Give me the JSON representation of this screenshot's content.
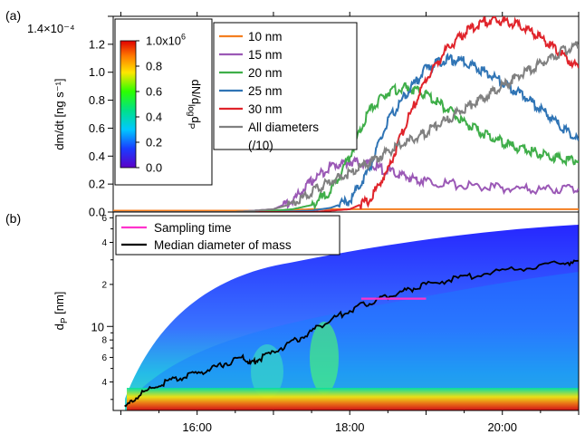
{
  "chart_data": [
    {
      "panel": "(a)",
      "type": "line",
      "ylabel": "dm/dt [ng s⁻¹]",
      "y_exponent": "×10⁻⁴",
      "ylim": [
        0,
        1.4
      ],
      "yticks": [
        "0.0",
        "0.2",
        "0.4",
        "0.6",
        "0.8",
        "1.0",
        "1.2",
        "1.4"
      ],
      "x_unit": "hours",
      "xlim": [
        14.9,
        21.0
      ],
      "legend_position": "top-center",
      "series": [
        {
          "name": "10 nm",
          "color": "#f47f20",
          "x": [
            14.9,
            15.5,
            16.0,
            16.5,
            17.0,
            17.5,
            18.0,
            18.5,
            19.0,
            19.5,
            20.0,
            20.5,
            21.0
          ],
          "values": [
            0.01,
            0.01,
            0.01,
            0.01,
            0.01,
            0.02,
            0.02,
            0.02,
            0.02,
            0.02,
            0.02,
            0.02,
            0.02
          ]
        },
        {
          "name": "15 nm",
          "color": "#9b59b6",
          "x": [
            14.9,
            16.0,
            16.5,
            17.0,
            17.25,
            17.5,
            17.75,
            18.0,
            18.25,
            18.5,
            18.75,
            19.0,
            19.5,
            20.0,
            20.5,
            21.0
          ],
          "values": [
            0.0,
            0.0,
            0.0,
            0.02,
            0.08,
            0.22,
            0.33,
            0.36,
            0.34,
            0.29,
            0.25,
            0.22,
            0.19,
            0.17,
            0.16,
            0.17
          ]
        },
        {
          "name": "20 nm",
          "color": "#3fae49",
          "x": [
            14.9,
            16.5,
            17.0,
            17.25,
            17.5,
            17.75,
            18.0,
            18.25,
            18.5,
            18.75,
            19.0,
            19.25,
            19.5,
            19.75,
            20.0,
            20.25,
            20.5,
            20.75,
            21.0
          ],
          "values": [
            0.0,
            0.0,
            0.01,
            0.02,
            0.05,
            0.15,
            0.4,
            0.72,
            0.86,
            0.89,
            0.84,
            0.75,
            0.64,
            0.56,
            0.5,
            0.45,
            0.42,
            0.38,
            0.37
          ]
        },
        {
          "name": "25 nm",
          "color": "#2f74b5",
          "x": [
            14.9,
            17.0,
            17.5,
            17.75,
            18.0,
            18.25,
            18.5,
            18.75,
            19.0,
            19.25,
            19.5,
            19.75,
            20.0,
            20.25,
            20.5,
            20.75,
            21.0
          ],
          "values": [
            0.0,
            0.0,
            0.01,
            0.03,
            0.08,
            0.3,
            0.65,
            0.85,
            1.03,
            1.09,
            1.08,
            1.01,
            0.93,
            0.84,
            0.74,
            0.62,
            0.51
          ]
        },
        {
          "name": "30 nm",
          "color": "#e0242b",
          "x": [
            14.9,
            17.5,
            18.0,
            18.25,
            18.5,
            18.75,
            19.0,
            19.25,
            19.5,
            19.75,
            20.0,
            20.25,
            20.5,
            20.75,
            21.0
          ],
          "values": [
            0.0,
            0.0,
            0.02,
            0.08,
            0.3,
            0.65,
            0.95,
            1.15,
            1.28,
            1.36,
            1.37,
            1.33,
            1.25,
            1.14,
            1.03
          ]
        },
        {
          "name": "All diameters",
          "name_extra": "(/10)",
          "color": "#808080",
          "x": [
            14.9,
            15.5,
            16.0,
            16.5,
            17.0,
            17.25,
            17.5,
            17.75,
            18.0,
            18.25,
            18.5,
            18.75,
            19.0,
            19.25,
            19.5,
            19.75,
            20.0,
            20.25,
            20.5,
            20.75,
            21.0
          ],
          "values": [
            0.0,
            0.0,
            0.0,
            0.0,
            0.02,
            0.06,
            0.14,
            0.22,
            0.28,
            0.35,
            0.43,
            0.5,
            0.57,
            0.65,
            0.74,
            0.82,
            0.9,
            0.98,
            1.06,
            1.14,
            1.2
          ]
        }
      ]
    },
    {
      "panel": "(b)",
      "type": "heatmap",
      "ylabel": "d",
      "ylabel_sub": "P",
      "ylabel_unit": " [nm]",
      "y_scale": "log",
      "ylim": [
        2.5,
        66
      ],
      "y_major_ticks": [
        {
          "v": 10,
          "label": "10"
        }
      ],
      "y_minor_ticks": [
        {
          "v": 4,
          "label": "4"
        },
        {
          "v": 6,
          "label": "6"
        },
        {
          "v": 8,
          "label": "8"
        },
        {
          "v": 20,
          "label": "2"
        },
        {
          "v": 40,
          "label": "4"
        },
        {
          "v": 60,
          "label": "6"
        }
      ],
      "xlim": [
        14.9,
        21.0
      ],
      "x_tick_labels": [
        {
          "v": 16,
          "label": "16:00"
        },
        {
          "v": 18,
          "label": "18:00"
        },
        {
          "v": 20,
          "label": "20:00"
        }
      ],
      "legend_position": "top-left",
      "series": [
        {
          "name": "Median diameter of mass",
          "color": "#000000",
          "x": [
            15.05,
            15.2,
            15.4,
            15.6,
            15.8,
            16.0,
            16.2,
            16.4,
            16.6,
            16.7,
            16.8,
            17.0,
            17.2,
            17.4,
            17.6,
            17.8,
            18.0,
            18.2,
            18.4,
            18.6,
            18.8,
            19.0,
            19.3,
            19.6,
            20.0,
            20.4,
            20.8,
            21.0
          ],
          "values": [
            2.6,
            3.1,
            3.6,
            4.0,
            4.3,
            4.6,
            5.0,
            5.5,
            6.0,
            5.4,
            5.8,
            6.5,
            7.5,
            8.5,
            10.0,
            11.5,
            13.0,
            14.5,
            15.8,
            17.2,
            18.5,
            20.0,
            21.5,
            23.0,
            25.0,
            26.5,
            28.5,
            29.5
          ]
        },
        {
          "name": "Sampling time",
          "color": "#ff33cc",
          "x": [
            18.15,
            19.0
          ],
          "values": [
            15.8,
            15.8
          ]
        }
      ],
      "colorbar": {
        "label": "dN/d",
        "label_sub": "log",
        "label_tail": "d",
        "label_sub2": "P",
        "range": [
          0,
          1.0
        ],
        "ticks": [
          "0.0",
          "0.2",
          "0.4",
          "0.6",
          "0.8"
        ],
        "top_tick": "1.0x10",
        "top_tick_exp": "6",
        "colormap": "rainbow"
      }
    }
  ]
}
